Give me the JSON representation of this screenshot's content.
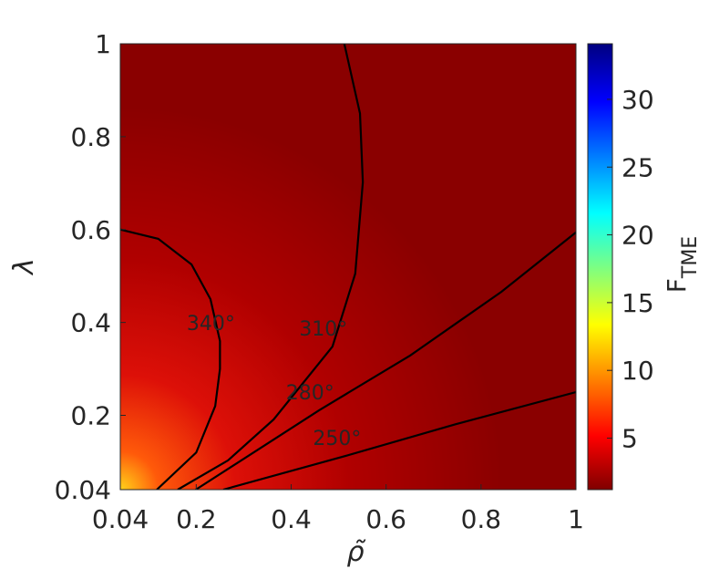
{
  "chart_data": {
    "type": "contour",
    "xlabel": "ρ̃",
    "ylabel": "λ",
    "xlim": [
      0.04,
      1
    ],
    "ylim": [
      0.04,
      1
    ],
    "xticks": [
      0.04,
      0.2,
      0.4,
      0.6,
      0.8,
      1
    ],
    "yticks": [
      0.04,
      0.2,
      0.4,
      0.6,
      0.8,
      1
    ],
    "colorbar": {
      "label": "F",
      "label_sub": "TME",
      "clim": [
        1.2,
        34.1
      ],
      "ticks": [
        5,
        10,
        15,
        20,
        25,
        30
      ]
    },
    "contours": [
      {
        "level": 340,
        "label": "340°",
        "color": "#000000",
        "x": [
          0.04,
          0.12,
          0.19,
          0.23,
          0.25,
          0.25,
          0.24,
          0.2,
          0.117
        ],
        "y": [
          0.6,
          0.58,
          0.525,
          0.45,
          0.36,
          0.3,
          0.22,
          0.12,
          0.04
        ]
      },
      {
        "level": 310,
        "label": "310°",
        "color": "#000000",
        "x": [
          0.512,
          0.545,
          0.551,
          0.535,
          0.487,
          0.363,
          0.267,
          0.161
        ],
        "y": [
          1,
          0.85,
          0.702,
          0.505,
          0.348,
          0.191,
          0.103,
          0.04
        ]
      },
      {
        "level": 280,
        "label": "280°",
        "color": "#000000",
        "x": [
          1,
          0.843,
          0.651,
          0.459,
          0.324,
          0.199
        ],
        "y": [
          0.594,
          0.466,
          0.329,
          0.211,
          0.122,
          0.04
        ]
      },
      {
        "level": 250,
        "label": "250°",
        "color": "#000000",
        "x": [
          1,
          0.747,
          0.516,
          0.257
        ],
        "y": [
          0.25,
          0.181,
          0.113,
          0.04
        ]
      }
    ]
  }
}
